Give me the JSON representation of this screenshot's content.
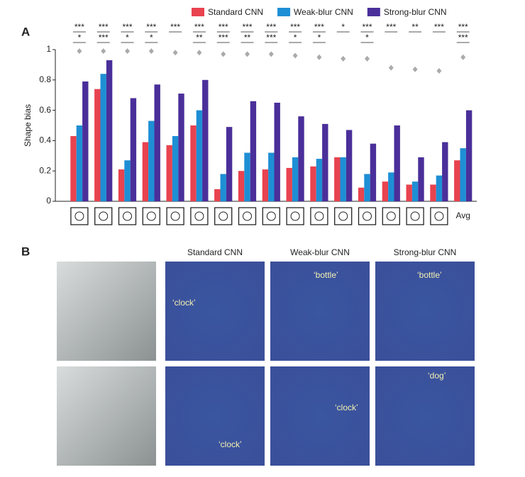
{
  "panel_labels": [
    "A",
    "B"
  ],
  "chart_data": {
    "type": "bar",
    "y_label": "Shape bias",
    "categories": [
      null,
      null,
      null,
      null,
      null,
      null,
      null,
      null,
      null,
      null,
      null,
      null,
      null,
      null,
      null,
      null,
      "Avg"
    ],
    "series": [
      {
        "name": "Standard CNN",
        "color": "#e8434f",
        "values": [
          0.43,
          0.74,
          0.21,
          0.39,
          0.37,
          0.5,
          0.08,
          0.2,
          0.21,
          0.22,
          0.23,
          0.29,
          0.09,
          0.13,
          0.11,
          0.11,
          0.27
        ]
      },
      {
        "name": "Weak-blur CNN",
        "color": "#1e8fd5",
        "values": [
          0.5,
          0.84,
          0.27,
          0.53,
          0.43,
          0.6,
          0.18,
          0.32,
          0.32,
          0.29,
          0.28,
          0.29,
          0.18,
          0.19,
          0.13,
          0.17,
          0.35
        ]
      },
      {
        "name": "Strong-blur CNN",
        "color": "#4a2f9a",
        "values": [
          0.79,
          0.93,
          0.68,
          0.77,
          0.71,
          0.8,
          0.49,
          0.66,
          0.65,
          0.56,
          0.51,
          0.47,
          0.38,
          0.5,
          0.29,
          0.39,
          0.6
        ]
      }
    ],
    "reference_markers": {
      "color": "#aaaaaa",
      "values": [
        0.99,
        0.99,
        0.99,
        0.99,
        0.98,
        0.98,
        0.97,
        0.97,
        0.97,
        0.96,
        0.95,
        0.94,
        0.94,
        0.88,
        0.87,
        0.86,
        0.95
      ]
    },
    "significance": [
      [
        "***",
        "***",
        "***",
        "***",
        "***",
        "***",
        "***",
        "***",
        "***",
        "***",
        "***",
        "*",
        "***",
        "***",
        "**",
        "***",
        "***"
      ],
      [
        "*",
        "***",
        "*",
        "*",
        null,
        "**",
        "***",
        "**",
        "***",
        "*",
        "*",
        null,
        "*",
        null,
        null,
        null,
        "***"
      ]
    ],
    "ylim": [
      0,
      1
    ],
    "yticks": [
      0,
      0.2,
      0.4,
      0.6,
      0.8,
      1
    ],
    "legend": "top"
  },
  "panel_b": {
    "columns": [
      "Standard CNN",
      "Weak-blur CNN",
      "Strong-blur CNN"
    ],
    "labels": [
      [
        null,
        "‘clock’",
        "‘bottle’",
        "‘bottle’"
      ],
      [
        null,
        "‘clock’",
        "‘clock’",
        "‘dog’"
      ]
    ]
  }
}
